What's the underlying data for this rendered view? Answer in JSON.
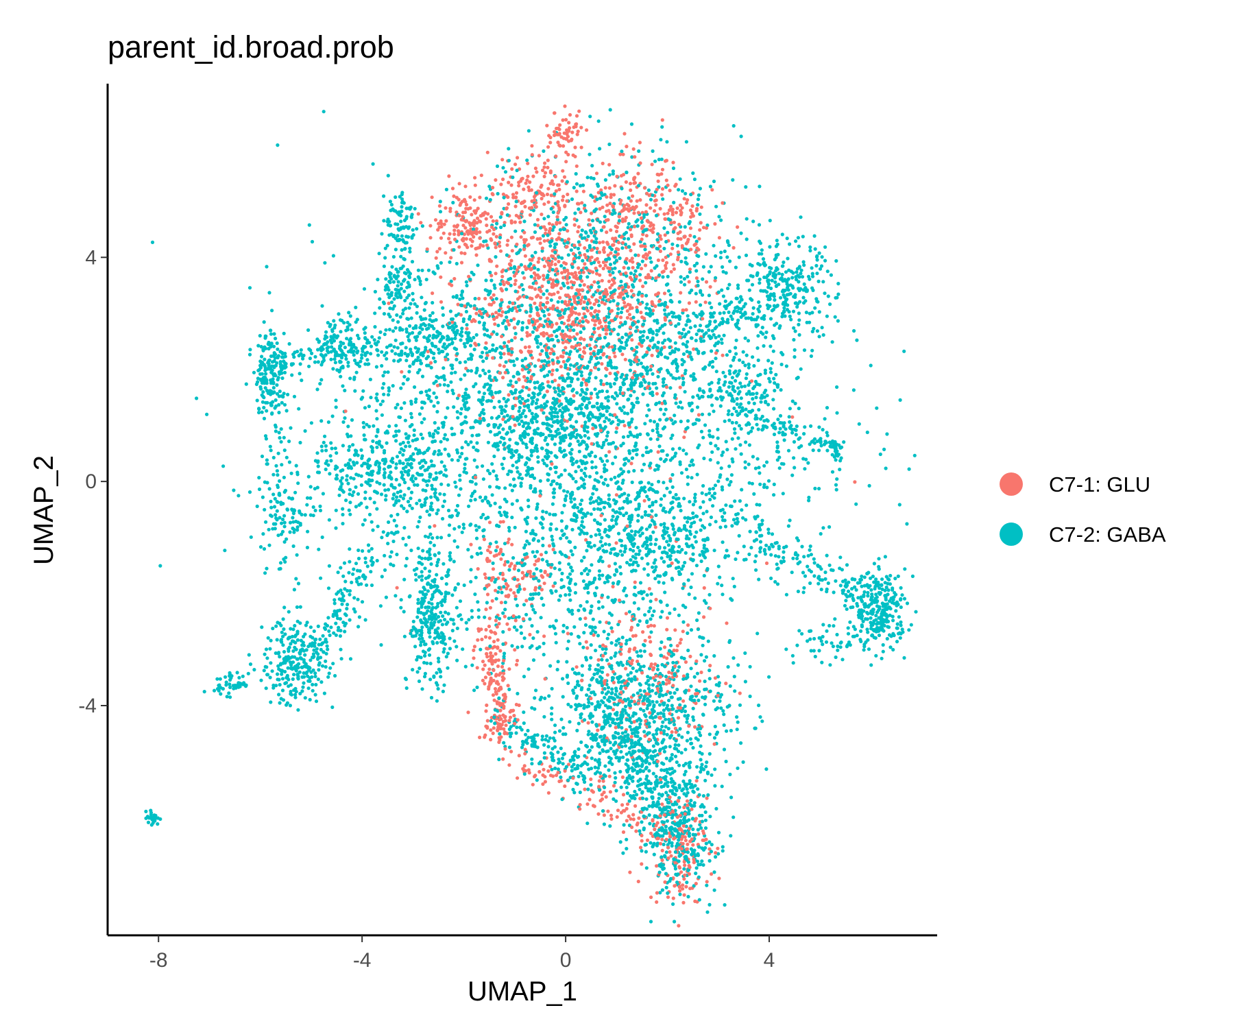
{
  "chart_data": {
    "type": "scatter",
    "title": "parent_id.broad.prob",
    "xlabel": "UMAP_1",
    "ylabel": "UMAP_2",
    "xlim": [
      -9.0,
      7.3
    ],
    "ylim": [
      -8.1,
      7.1
    ],
    "x_ticks": [
      -8,
      -4,
      0,
      4
    ],
    "x_tick_labels": [
      "-8",
      "-4",
      "0",
      "4"
    ],
    "y_ticks": [
      -4,
      0,
      4
    ],
    "y_tick_labels": [
      "-4",
      "0",
      "4"
    ],
    "grid": false,
    "legend_position": "right",
    "series": [
      {
        "name": "C7-1: GLU",
        "color": "#F8766D"
      },
      {
        "name": "C7-2: GABA",
        "color": "#00BFC4"
      }
    ],
    "clusters": [
      {
        "series": 1,
        "cx": 0.1,
        "cy": 3.3,
        "sx": 1.1,
        "sy": 0.9,
        "n": 900
      },
      {
        "series": 1,
        "cx": -1.9,
        "cy": 4.6,
        "sx": 0.35,
        "sy": 0.3,
        "n": 140
      },
      {
        "series": 1,
        "cx": -0.6,
        "cy": 5.2,
        "sx": 0.35,
        "sy": 0.3,
        "n": 100
      },
      {
        "series": 1,
        "cx": 0.0,
        "cy": 6.2,
        "sx": 0.2,
        "sy": 0.2,
        "n": 60
      },
      {
        "series": 1,
        "cx": 1.3,
        "cy": 4.8,
        "sx": 0.5,
        "sy": 0.5,
        "n": 140
      },
      {
        "series": 1,
        "cx": 2.3,
        "cy": 4.5,
        "sx": 0.3,
        "sy": 0.5,
        "n": 70
      },
      {
        "series": 1,
        "cx": -1.3,
        "cy": -1.8,
        "sx": 0.25,
        "sy": 0.45,
        "n": 80
      },
      {
        "series": 1,
        "cx": -1.4,
        "cy": -3.1,
        "sx": 0.2,
        "sy": 0.3,
        "n": 60
      },
      {
        "series": 1,
        "cx": -1.3,
        "cy": -4.2,
        "sx": 0.2,
        "sy": 0.3,
        "n": 50
      },
      {
        "series": 1,
        "cx": 1.7,
        "cy": -3.6,
        "sx": 0.7,
        "sy": 0.7,
        "n": 200
      },
      {
        "series": 1,
        "cx": 2.2,
        "cy": -6.5,
        "sx": 0.3,
        "sy": 0.5,
        "n": 160
      },
      {
        "series": 1,
        "cx": -0.6,
        "cy": -1.6,
        "sx": 0.2,
        "sy": 0.2,
        "n": 30
      },
      {
        "series": 1,
        "cx": 0.0,
        "cy": 0.0,
        "sx": 2.2,
        "sy": 2.0,
        "n": 70
      },
      {
        "series": 2,
        "cx": 0.0,
        "cy": 0.9,
        "sx": 2.4,
        "sy": 1.6,
        "n": 2200
      },
      {
        "series": 2,
        "cx": -0.2,
        "cy": 1.1,
        "sx": 0.6,
        "sy": 0.5,
        "n": 300
      },
      {
        "series": 2,
        "cx": 1.7,
        "cy": -1.1,
        "sx": 0.9,
        "sy": 0.5,
        "n": 350
      },
      {
        "series": 2,
        "cx": -3.3,
        "cy": 0.1,
        "sx": 0.6,
        "sy": 0.6,
        "n": 250
      },
      {
        "series": 2,
        "cx": -2.3,
        "cy": 2.5,
        "sx": 0.6,
        "sy": 0.5,
        "n": 200
      },
      {
        "series": 2,
        "cx": -4.4,
        "cy": 2.4,
        "sx": 0.3,
        "sy": 0.25,
        "n": 100
      },
      {
        "series": 2,
        "cx": -5.8,
        "cy": 1.9,
        "sx": 0.15,
        "sy": 0.4,
        "n": 150
      },
      {
        "series": 2,
        "cx": -5.6,
        "cy": -0.4,
        "sx": 0.25,
        "sy": 0.7,
        "n": 100
      },
      {
        "series": 2,
        "cx": -3.3,
        "cy": 4.7,
        "sx": 0.15,
        "sy": 0.25,
        "n": 60
      },
      {
        "series": 2,
        "cx": -3.3,
        "cy": 3.5,
        "sx": 0.2,
        "sy": 0.2,
        "n": 50
      },
      {
        "series": 2,
        "cx": 4.3,
        "cy": 3.4,
        "sx": 0.5,
        "sy": 0.45,
        "n": 250
      },
      {
        "series": 2,
        "cx": 3.5,
        "cy": 1.7,
        "sx": 0.4,
        "sy": 0.4,
        "n": 100
      },
      {
        "series": 2,
        "cx": 6.2,
        "cy": -2.3,
        "sx": 0.25,
        "sy": 0.35,
        "n": 250
      },
      {
        "series": 2,
        "cx": -2.6,
        "cy": -2.5,
        "sx": 0.25,
        "sy": 0.6,
        "n": 200
      },
      {
        "series": 2,
        "cx": -5.3,
        "cy": -3.2,
        "sx": 0.3,
        "sy": 0.4,
        "n": 200
      },
      {
        "series": 2,
        "cx": 1.5,
        "cy": -4.2,
        "sx": 0.9,
        "sy": 0.8,
        "n": 800
      },
      {
        "series": 2,
        "cx": 2.2,
        "cy": -6.2,
        "sx": 0.4,
        "sy": 0.6,
        "n": 250
      },
      {
        "series": 2,
        "cx": 0.8,
        "cy": 4.2,
        "sx": 1.3,
        "sy": 0.9,
        "n": 500
      },
      {
        "series": 2,
        "cx": 1.5,
        "cy": 2.3,
        "sx": 0.8,
        "sy": 0.5,
        "n": 200
      },
      {
        "series": 2,
        "cx": -8.1,
        "cy": -6.0,
        "sx": 0.06,
        "sy": 0.06,
        "n": 30
      },
      {
        "series": 2,
        "cx": -6.6,
        "cy": -3.6,
        "sx": 0.15,
        "sy": 0.1,
        "n": 30
      },
      {
        "series": 2,
        "cx": -0.1,
        "cy": -2.2,
        "sx": 1.0,
        "sy": 0.7,
        "n": 200
      }
    ],
    "trails": [
      {
        "series": 2,
        "from": [
          -6.1,
          2.0
        ],
        "to": [
          -4.4,
          2.4
        ],
        "sd": 0.15,
        "n": 80
      },
      {
        "series": 2,
        "from": [
          -4.3,
          2.3
        ],
        "to": [
          -2.3,
          2.5
        ],
        "sd": 0.18,
        "n": 100
      },
      {
        "series": 2,
        "from": [
          -5.5,
          -0.8
        ],
        "to": [
          -4.8,
          -0.3
        ],
        "sd": 0.12,
        "n": 25
      },
      {
        "series": 2,
        "from": [
          -4.8,
          0.4
        ],
        "to": [
          -3.3,
          0.1
        ],
        "sd": 0.15,
        "n": 60
      },
      {
        "series": 2,
        "from": [
          -5.2,
          -3.6
        ],
        "to": [
          -3.8,
          -1.3
        ],
        "sd": 0.15,
        "n": 140
      },
      {
        "series": 2,
        "from": [
          -6.8,
          -3.7
        ],
        "to": [
          -5.3,
          -3.3
        ],
        "sd": 0.12,
        "n": 40
      },
      {
        "series": 2,
        "from": [
          -3.3,
          4.8
        ],
        "to": [
          -3.2,
          3.0
        ],
        "sd": 0.2,
        "n": 60
      },
      {
        "series": 2,
        "from": [
          2.6,
          2.6
        ],
        "to": [
          4.3,
          3.4
        ],
        "sd": 0.2,
        "n": 90
      },
      {
        "series": 2,
        "from": [
          3.3,
          1.3
        ],
        "to": [
          5.3,
          0.6
        ],
        "sd": 0.15,
        "n": 80
      },
      {
        "series": 2,
        "from": [
          5.3,
          0.6
        ],
        "to": [
          5.4,
          0.6
        ],
        "sd": 0.08,
        "n": 30
      },
      {
        "series": 2,
        "from": [
          3.5,
          -0.8
        ],
        "to": [
          6.1,
          -2.2
        ],
        "sd": 0.2,
        "n": 140
      },
      {
        "series": 2,
        "from": [
          4.6,
          -3.0
        ],
        "to": [
          6.0,
          -2.6
        ],
        "sd": 0.2,
        "n": 60
      },
      {
        "series": 2,
        "from": [
          -2.7,
          -1.4
        ],
        "to": [
          -2.7,
          -3.3
        ],
        "sd": 0.18,
        "n": 80
      },
      {
        "series": 2,
        "from": [
          0.5,
          -3.6
        ],
        "to": [
          2.5,
          -6.9
        ],
        "sd": 0.25,
        "n": 300
      },
      {
        "series": 2,
        "from": [
          -1.3,
          -4.2
        ],
        "to": [
          0.4,
          -5.2
        ],
        "sd": 0.2,
        "n": 120
      },
      {
        "series": 1,
        "from": [
          -1.4,
          -3.2
        ],
        "to": [
          -1.2,
          -4.5
        ],
        "sd": 0.12,
        "n": 60
      },
      {
        "series": 1,
        "from": [
          0.3,
          -5.3
        ],
        "to": [
          1.5,
          -6.2
        ],
        "sd": 0.2,
        "n": 60
      },
      {
        "series": 1,
        "from": [
          -1.0,
          -5.0
        ],
        "to": [
          0.0,
          -5.4
        ],
        "sd": 0.15,
        "n": 40
      }
    ]
  }
}
